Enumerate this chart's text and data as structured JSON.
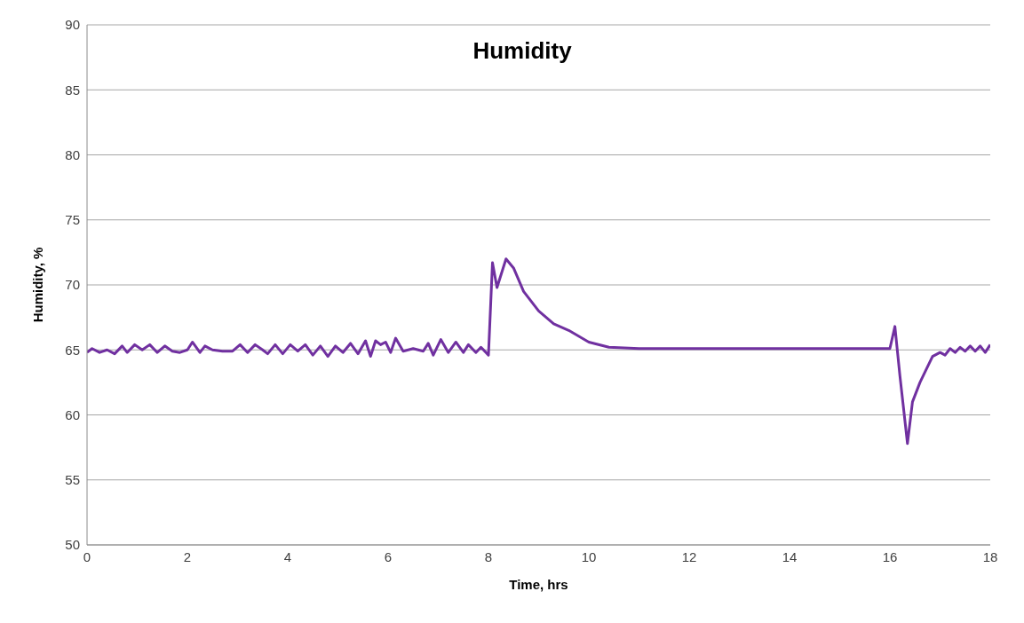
{
  "chart_data": {
    "type": "line",
    "title": "Humidity",
    "xlabel": "Time, hrs",
    "ylabel": "Humidity, %",
    "xlim": [
      0,
      18
    ],
    "xticks": [
      0,
      2,
      4,
      6,
      8,
      10,
      12,
      14,
      16,
      18
    ],
    "ylim": [
      50,
      90
    ],
    "yticks": [
      50,
      55,
      60,
      65,
      70,
      75,
      80,
      85,
      90
    ],
    "grid": "y",
    "marker": "none",
    "line_style": "solid",
    "x": [
      0,
      0.1,
      0.25,
      0.4,
      0.55,
      0.7,
      0.8,
      0.95,
      1.1,
      1.25,
      1.4,
      1.55,
      1.7,
      1.85,
      2.0,
      2.1,
      2.25,
      2.35,
      2.5,
      2.7,
      2.9,
      3.05,
      3.2,
      3.35,
      3.5,
      3.6,
      3.75,
      3.9,
      4.05,
      4.2,
      4.35,
      4.5,
      4.65,
      4.8,
      4.95,
      5.1,
      5.25,
      5.4,
      5.55,
      5.65,
      5.75,
      5.85,
      5.95,
      6.05,
      6.15,
      6.3,
      6.5,
      6.7,
      6.8,
      6.9,
      7.05,
      7.2,
      7.35,
      7.5,
      7.6,
      7.75,
      7.85,
      8.0,
      8.08,
      8.17,
      8.35,
      8.5,
      8.7,
      9.0,
      9.3,
      9.6,
      10.0,
      10.4,
      11.0,
      11.5,
      12.0,
      12.5,
      13.0,
      13.5,
      14.0,
      14.5,
      15.0,
      15.5,
      16.0,
      16.1,
      16.2,
      16.35,
      16.45,
      16.6,
      16.7,
      16.85,
      17.0,
      17.1,
      17.2,
      17.3,
      17.4,
      17.5,
      17.6,
      17.7,
      17.8,
      17.9,
      18.0
    ],
    "series": [
      {
        "color": "#7030a0",
        "values": [
          64.8,
          65.1,
          64.8,
          65.0,
          64.7,
          65.3,
          64.8,
          65.4,
          65.0,
          65.4,
          64.8,
          65.3,
          64.9,
          64.8,
          65.0,
          65.6,
          64.8,
          65.3,
          65.0,
          64.9,
          64.9,
          65.4,
          64.8,
          65.4,
          65.0,
          64.7,
          65.4,
          64.7,
          65.4,
          64.9,
          65.4,
          64.6,
          65.3,
          64.5,
          65.3,
          64.8,
          65.5,
          64.7,
          65.7,
          64.5,
          65.7,
          65.4,
          65.6,
          64.8,
          65.9,
          64.9,
          65.1,
          64.9,
          65.5,
          64.6,
          65.8,
          64.8,
          65.6,
          64.8,
          65.4,
          64.8,
          65.2,
          64.6,
          71.7,
          69.8,
          72.0,
          71.3,
          69.5,
          68.0,
          67.0,
          66.5,
          65.6,
          65.2,
          65.1,
          65.1,
          65.1,
          65.1,
          65.1,
          65.1,
          65.1,
          65.1,
          65.1,
          65.1,
          65.1,
          66.8,
          63.0,
          57.8,
          61.0,
          62.5,
          63.3,
          64.5,
          64.8,
          64.6,
          65.1,
          64.8,
          65.2,
          64.9,
          65.3,
          64.9,
          65.3,
          64.8,
          65.4
        ]
      }
    ]
  }
}
